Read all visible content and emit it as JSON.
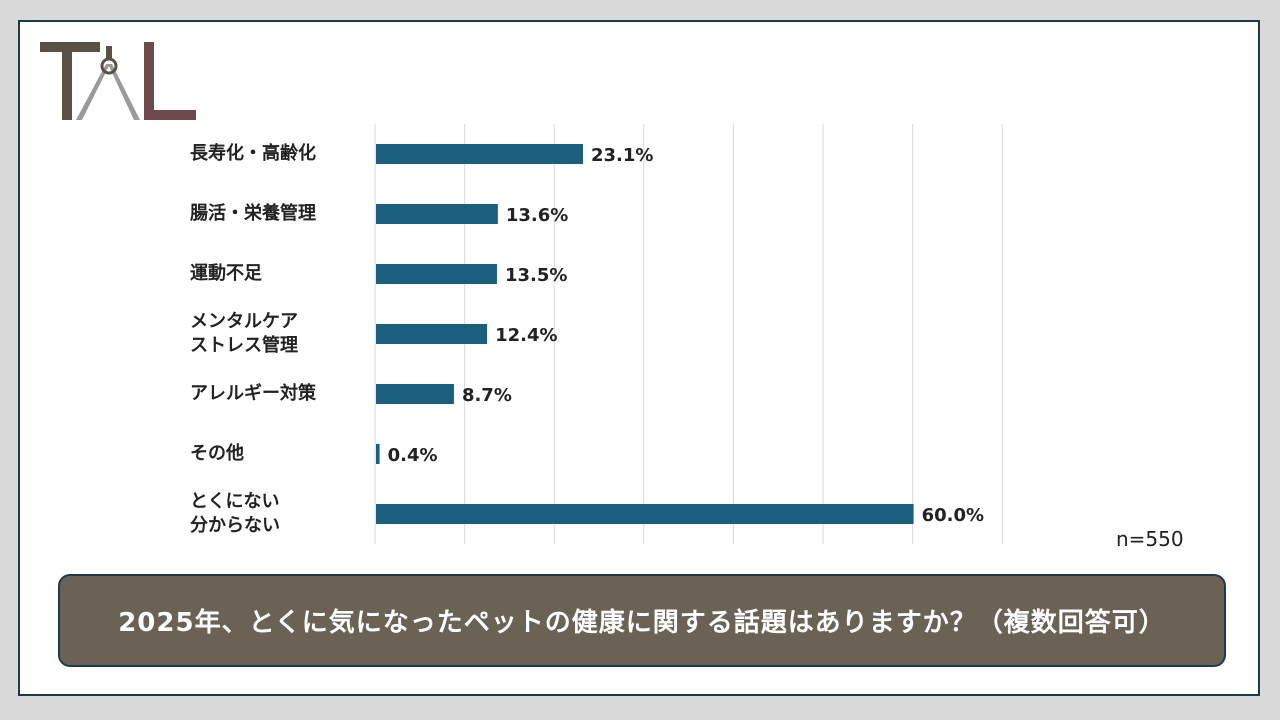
{
  "brand": {
    "logo_text": "TAL",
    "colors": {
      "logo_dark": "#5a5146",
      "logo_accent": "#6e4a4a",
      "logo_gray": "#9a9a9a"
    }
  },
  "chart_data": {
    "type": "bar",
    "orientation": "horizontal",
    "categories": [
      "長寿化・高齢化",
      "腸活・栄養管理",
      "運動不足",
      "メンタルケア\nストレス管理",
      "アレルギー対策",
      "その他",
      "とくにない\n分からない"
    ],
    "values": [
      23.1,
      13.6,
      13.5,
      12.4,
      8.7,
      0.4,
      60.0
    ],
    "value_labels": [
      "23.1%",
      "13.6%",
      "13.5%",
      "12.4%",
      "8.7%",
      "0.4%",
      "60.0%"
    ],
    "xlim": [
      0,
      70
    ],
    "x_grid_step": 10,
    "grid": true,
    "bar_color": "#1b5e80",
    "grid_color": "#d9d9d9",
    "title": "",
    "xlabel": "",
    "ylabel": ""
  },
  "sample_size": "n=550",
  "question": "2025年、とくに気になったペットの健康に関する話題はありますか？（複数回答可）",
  "colors": {
    "question_bg": "#6b6256",
    "frame_border": "#1f3a4d"
  }
}
